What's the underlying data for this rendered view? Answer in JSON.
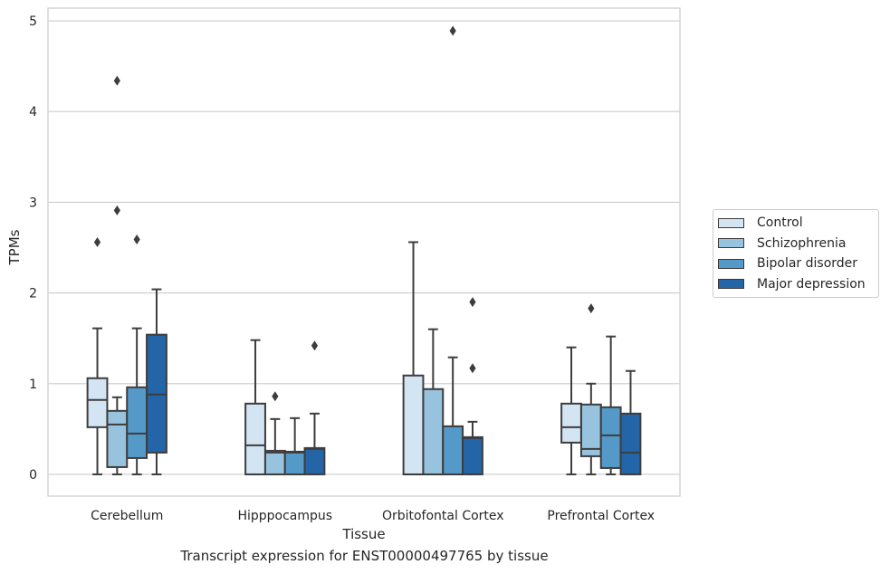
{
  "chart_data": {
    "type": "boxplot",
    "xlabel": "Tissue",
    "ylabel": "TPMs",
    "caption": "Transcript expression for ENST00000497765 by tissue",
    "ylim": [
      -0.24,
      5.14
    ],
    "yticks": [
      0,
      1,
      2,
      3,
      4,
      5
    ],
    "grid": true,
    "legend_position": "right",
    "categories": [
      "Cerebellum",
      "Hipppocampus",
      "Orbitofontal Cortex",
      "Prefrontal Cortex"
    ],
    "series": [
      {
        "name": "Control",
        "color": "#d3e4f3",
        "boxes": [
          {
            "whislo": 0,
            "q1": 0.52,
            "med": 0.82,
            "q3": 1.06,
            "whishi": 1.61,
            "fliers": [
              2.56
            ]
          },
          {
            "whislo": 0,
            "q1": 0,
            "med": 0.32,
            "q3": 0.78,
            "whishi": 1.48,
            "fliers": []
          },
          {
            "whislo": 0,
            "q1": 0,
            "med": 0,
            "q3": 1.09,
            "whishi": 2.56,
            "fliers": []
          },
          {
            "whislo": 0,
            "q1": 0.35,
            "med": 0.52,
            "q3": 0.78,
            "whishi": 1.4,
            "fliers": []
          }
        ]
      },
      {
        "name": "Schizophrenia",
        "color": "#98c3de",
        "boxes": [
          {
            "whislo": 0,
            "q1": 0.08,
            "med": 0.55,
            "q3": 0.7,
            "whishi": 0.85,
            "fliers": [
              2.91,
              4.34
            ]
          },
          {
            "whislo": 0,
            "q1": 0,
            "med": 0.24,
            "q3": 0.26,
            "whishi": 0.61,
            "fliers": [
              0.86
            ]
          },
          {
            "whislo": 0,
            "q1": 0,
            "med": 0,
            "q3": 0.94,
            "whishi": 1.6,
            "fliers": []
          },
          {
            "whislo": 0,
            "q1": 0.2,
            "med": 0.28,
            "q3": 0.77,
            "whishi": 1.0,
            "fliers": [
              1.83
            ]
          }
        ]
      },
      {
        "name": "Bipolar disorder",
        "color": "#5599c8",
        "boxes": [
          {
            "whislo": 0,
            "q1": 0.18,
            "med": 0.45,
            "q3": 0.96,
            "whishi": 1.61,
            "fliers": [
              2.59
            ]
          },
          {
            "whislo": 0,
            "q1": 0,
            "med": 0.24,
            "q3": 0.25,
            "whishi": 0.62,
            "fliers": []
          },
          {
            "whislo": 0,
            "q1": 0,
            "med": 0,
            "q3": 0.53,
            "whishi": 1.29,
            "fliers": [
              4.89
            ]
          },
          {
            "whislo": 0,
            "q1": 0.07,
            "med": 0.43,
            "q3": 0.74,
            "whishi": 1.52,
            "fliers": []
          }
        ]
      },
      {
        "name": "Major depression",
        "color": "#2465a8",
        "boxes": [
          {
            "whislo": 0,
            "q1": 0.24,
            "med": 0.88,
            "q3": 1.54,
            "whishi": 2.04,
            "fliers": []
          },
          {
            "whislo": 0,
            "q1": 0,
            "med": 0.28,
            "q3": 0.29,
            "whishi": 0.67,
            "fliers": [
              1.42
            ]
          },
          {
            "whislo": 0,
            "q1": 0,
            "med": 0.4,
            "q3": 0.41,
            "whishi": 0.58,
            "fliers": [
              1.17,
              1.9
            ]
          },
          {
            "whislo": 0,
            "q1": 0,
            "med": 0.24,
            "q3": 0.67,
            "whishi": 1.14,
            "fliers": []
          }
        ]
      }
    ]
  }
}
